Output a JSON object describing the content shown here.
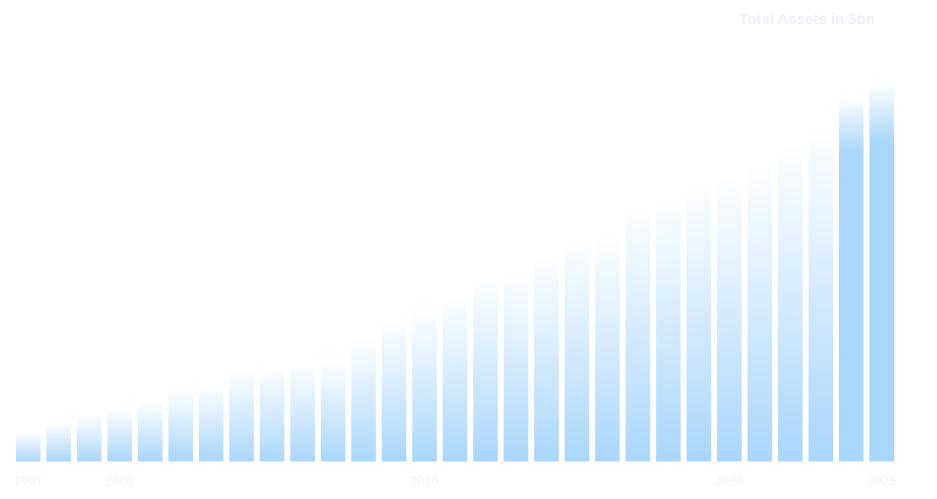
{
  "chart_data": {
    "type": "bar",
    "title": "Total Assets in $bn",
    "categories": [
      "1997",
      null,
      null,
      "2000",
      null,
      null,
      null,
      null,
      null,
      null,
      null,
      null,
      null,
      "2010",
      null,
      null,
      null,
      null,
      null,
      null,
      null,
      null,
      null,
      "2020",
      null,
      null,
      null,
      null,
      "2025"
    ],
    "values": [
      29,
      39,
      47,
      53,
      60,
      73,
      77,
      91,
      94,
      97,
      103,
      123,
      142,
      152,
      164,
      185,
      191,
      205,
      222,
      226,
      256,
      266,
      280,
      286,
      298,
      318,
      337,
      364,
      378
    ],
    "color": "#a9d6fb"
  }
}
